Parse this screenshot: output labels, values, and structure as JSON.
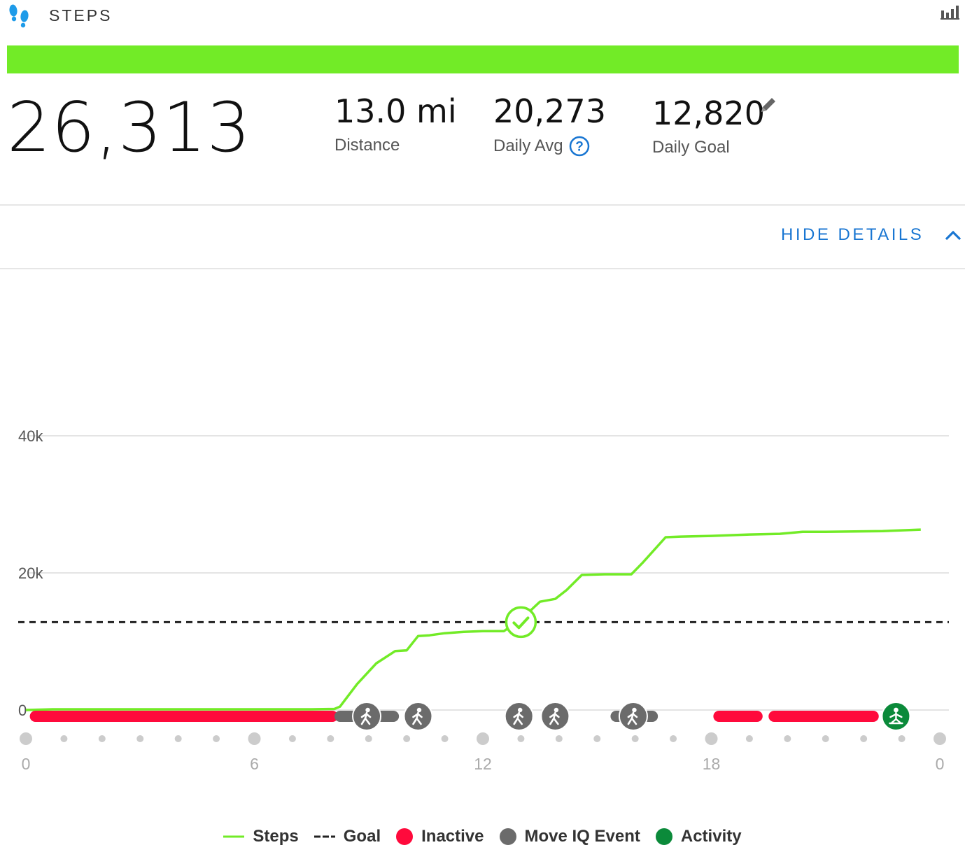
{
  "header": {
    "title": "STEPS",
    "icon": "footsteps-icon",
    "toggle_icon": "bar-chart-icon"
  },
  "progress": {
    "fraction": 1.0,
    "color": "#72eb27"
  },
  "summary": {
    "total": "26,313",
    "distance": {
      "value": "13.0 mi",
      "label": "Distance"
    },
    "daily_avg": {
      "value": "20,273",
      "label": "Daily Avg"
    },
    "daily_goal": {
      "value": "12,820",
      "label": "Daily Goal"
    }
  },
  "details_toggle": {
    "label": "HIDE DETAILS",
    "icon": "chevron-up-icon"
  },
  "colors": {
    "steps": "#72eb27",
    "inactive": "#ff0a3c",
    "move_iq": "#6b6b6b",
    "activity": "#0b8a3a",
    "accent": "#1976d2"
  },
  "chart_data": {
    "type": "line",
    "y_ticks": [
      "0",
      "20k",
      "40k"
    ],
    "ylim": [
      0,
      40000
    ],
    "x_ticks": [
      "0",
      "6",
      "12",
      "18",
      "0"
    ],
    "xlim": [
      0,
      24
    ],
    "goal": 12820,
    "goal_reached": {
      "hour": 13.0,
      "value": 12820
    },
    "series": [
      {
        "name": "Steps",
        "x": [
          0,
          0.7,
          7.5,
          8.1,
          8.25,
          8.7,
          9.2,
          9.7,
          10.0,
          10.3,
          10.6,
          11.0,
          11.5,
          12.0,
          12.55,
          13.0,
          13.5,
          13.9,
          14.2,
          14.6,
          15.2,
          15.9,
          16.2,
          16.8,
          17.2,
          18.0,
          19.0,
          19.8,
          20.4,
          21.0,
          22.5,
          23.5
        ],
        "y": [
          0,
          100,
          100,
          150,
          500,
          3800,
          6800,
          8600,
          8700,
          10800,
          10900,
          11200,
          11400,
          11500,
          11500,
          13200,
          15800,
          16200,
          17500,
          19700,
          19800,
          19800,
          21500,
          25200,
          25300,
          25400,
          25600,
          25700,
          26000,
          26000,
          26100,
          26313
        ]
      }
    ],
    "inactive_periods": [
      [
        0.25,
        8.05
      ],
      [
        18.2,
        19.2
      ],
      [
        19.65,
        22.25
      ]
    ],
    "move_iq_events": [
      {
        "start": 8.25,
        "end": 9.65,
        "center": 8.95
      },
      {
        "start": 10.3,
        "end": 10.3,
        "center": 10.3
      },
      {
        "start": 12.95,
        "end": 12.95,
        "center": 12.95
      },
      {
        "start": 13.9,
        "end": 13.9,
        "center": 13.9
      },
      {
        "start": 15.5,
        "end": 16.45,
        "center": 15.95
      }
    ],
    "activities": [
      {
        "hour": 22.85
      }
    ],
    "legend": [
      {
        "name": "Steps",
        "kind": "line",
        "color": "#72eb27"
      },
      {
        "name": "Goal",
        "kind": "dash",
        "color": "#222222"
      },
      {
        "name": "Inactive",
        "kind": "dot",
        "color": "#ff0a3c"
      },
      {
        "name": "Move IQ Event",
        "kind": "dot",
        "color": "#6b6b6b"
      },
      {
        "name": "Activity",
        "kind": "dot",
        "color": "#0b8a3a"
      }
    ]
  }
}
